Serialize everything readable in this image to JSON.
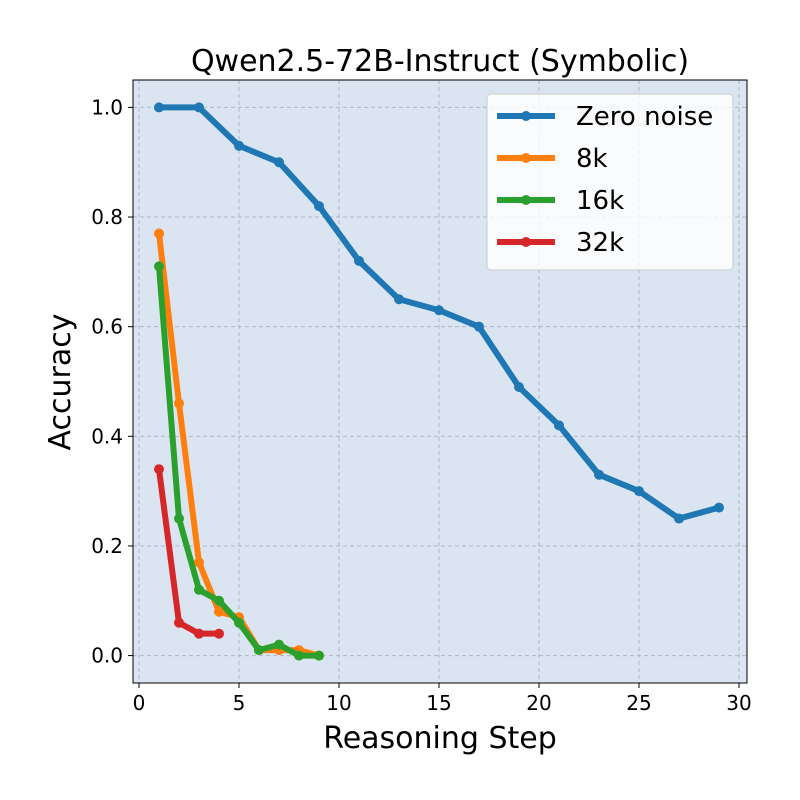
{
  "chart_data": {
    "type": "line",
    "title": "Qwen2.5-72B-Instruct (Symbolic)",
    "xlabel": "Reasoning Step",
    "ylabel": "Accuracy",
    "xlim": [
      -0.3,
      30.4
    ],
    "ylim": [
      -0.05,
      1.05
    ],
    "xticks": [
      0,
      5,
      10,
      15,
      20,
      25,
      30
    ],
    "yticks": [
      0.0,
      0.2,
      0.4,
      0.6,
      0.8,
      1.0
    ],
    "ytick_labels": [
      "0.0",
      "0.2",
      "0.4",
      "0.6",
      "0.8",
      "1.0"
    ],
    "grid": true,
    "legend_position": "top-right",
    "plot_background": "#dae5f1",
    "series": [
      {
        "name": "Zero noise",
        "color": "#1f77b4",
        "x": [
          1,
          3,
          5,
          7,
          9,
          11,
          13,
          15,
          17,
          19,
          21,
          23,
          25,
          27,
          29
        ],
        "y": [
          1.0,
          1.0,
          0.93,
          0.9,
          0.82,
          0.72,
          0.65,
          0.63,
          0.6,
          0.49,
          0.42,
          0.33,
          0.3,
          0.25,
          0.27
        ]
      },
      {
        "name": "8k",
        "color": "#ff7f0e",
        "x": [
          1,
          2,
          3,
          4,
          5,
          6,
          7,
          8,
          9
        ],
        "y": [
          0.77,
          0.46,
          0.17,
          0.08,
          0.07,
          0.01,
          0.01,
          0.01,
          0.0
        ]
      },
      {
        "name": "16k",
        "color": "#2ca02c",
        "x": [
          1,
          2,
          3,
          4,
          5,
          6,
          7,
          8,
          9
        ],
        "y": [
          0.71,
          0.25,
          0.12,
          0.1,
          0.06,
          0.01,
          0.02,
          0.0,
          0.0
        ]
      },
      {
        "name": "32k",
        "color": "#d62728",
        "x": [
          1,
          2,
          3,
          4
        ],
        "y": [
          0.34,
          0.06,
          0.04,
          0.04
        ]
      }
    ]
  }
}
